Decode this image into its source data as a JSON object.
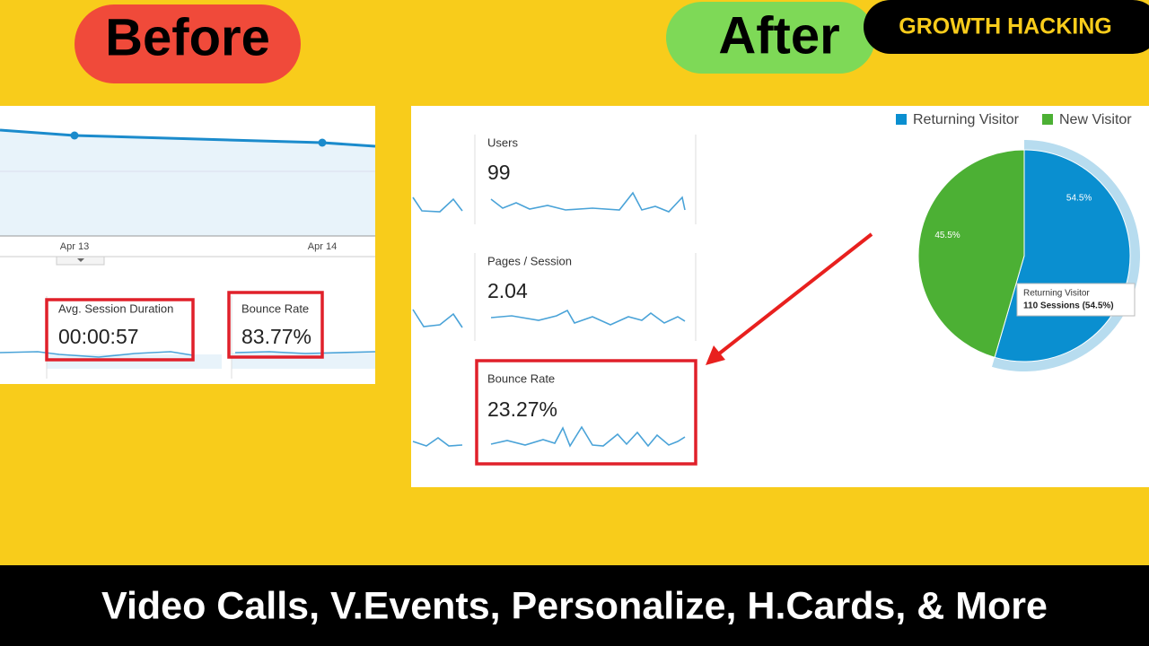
{
  "header": {
    "before": "Before",
    "after": "After",
    "badge": "GROWTH HACKING"
  },
  "before_panel": {
    "x_labels": [
      "Apr 13",
      "Apr 14"
    ],
    "metrics": [
      {
        "label": "Avg. Session Duration",
        "value": "00:00:57"
      },
      {
        "label": "Bounce Rate",
        "value": "83.77%"
      }
    ]
  },
  "after_panel": {
    "metrics": [
      {
        "label": "Users",
        "value": "99"
      },
      {
        "label": "Pages / Session",
        "value": "2.04"
      },
      {
        "label": "Bounce Rate",
        "value": "23.27%"
      }
    ]
  },
  "pie": {
    "series": [
      {
        "name": "Returning Visitor",
        "color": "#0a8fd0",
        "value": 54.5,
        "value_label": "54.5%"
      },
      {
        "name": "New Visitor",
        "color": "#4cb034",
        "value": 45.5,
        "value_label": "45.5%"
      }
    ],
    "tooltip": {
      "title": "Returning Visitor",
      "detail": "110 Sessions (54.5%)"
    }
  },
  "footer": "Video Calls, V.Events, Personalize, H.Cards, & More"
}
